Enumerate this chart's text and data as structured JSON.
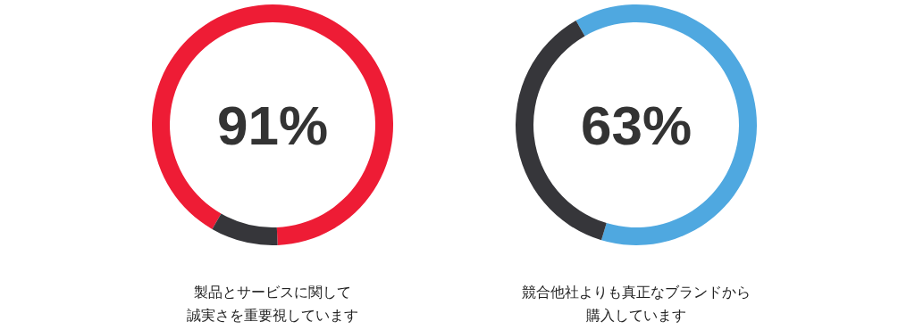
{
  "chart_data": [
    {
      "type": "donut",
      "categories": [
        null,
        null
      ],
      "values": [
        91,
        9
      ],
      "colors": [
        "#ee1c35",
        "#36363a"
      ],
      "value_labels": [
        "91%",
        null
      ],
      "annotations": [
        "製品とサービスに関して",
        "誠実さを重要視しています"
      ]
    },
    {
      "type": "donut",
      "categories": [
        null,
        null
      ],
      "values": [
        63,
        37
      ],
      "colors": [
        "#4fa8e0",
        "#36363a"
      ],
      "value_labels": [
        "63%",
        null
      ],
      "annotations": [
        "競合他社よりも真正なブランドから",
        "購入しています"
      ]
    }
  ]
}
